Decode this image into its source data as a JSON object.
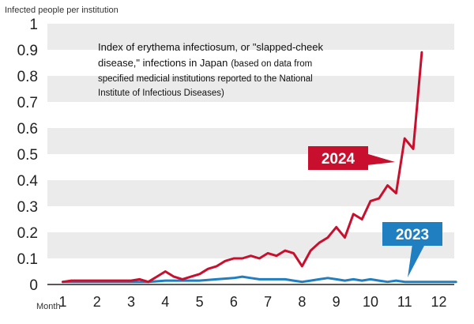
{
  "chart_data": {
    "type": "line",
    "ylabel": "Infected people per institution",
    "xlabel": "Month",
    "ylim": [
      0,
      1
    ],
    "yticks": [
      "0",
      "0.1",
      "0.2",
      "0.3",
      "0.4",
      "0.5",
      "0.6",
      "0.7",
      "0.8",
      "0.9",
      "1"
    ],
    "xticks": [
      "1",
      "2",
      "3",
      "4",
      "5",
      "6",
      "7",
      "8",
      "9",
      "10",
      "11",
      "12"
    ],
    "grid": "horizontal alternating bands",
    "note": {
      "title_1": "Index of erythema infectiosum, or \"slapped-cheek",
      "title_2": "disease,\" infections in Japan",
      "source_1": "(based on data from",
      "source_2": "specified medicial institutions reported to the National",
      "source_3": "Institute of Infectious Diseases)"
    },
    "series": [
      {
        "name": "2024",
        "color": "#c8102e",
        "x": [
          1,
          1.25,
          1.5,
          1.75,
          2,
          2.25,
          2.5,
          2.75,
          3,
          3.25,
          3.5,
          3.75,
          4,
          4.25,
          4.5,
          4.75,
          5,
          5.25,
          5.5,
          5.75,
          6,
          6.25,
          6.5,
          6.75,
          7,
          7.25,
          7.5,
          7.75,
          8,
          8.25,
          8.5,
          8.75,
          9,
          9.25,
          9.5,
          9.75,
          10,
          10.25,
          10.5,
          10.75,
          11,
          11.25,
          11.5
        ],
        "values": [
          0.01,
          0.015,
          0.015,
          0.015,
          0.015,
          0.015,
          0.015,
          0.015,
          0.015,
          0.02,
          0.01,
          0.03,
          0.05,
          0.03,
          0.02,
          0.03,
          0.04,
          0.06,
          0.07,
          0.09,
          0.1,
          0.1,
          0.11,
          0.1,
          0.12,
          0.11,
          0.13,
          0.12,
          0.07,
          0.13,
          0.16,
          0.18,
          0.22,
          0.18,
          0.27,
          0.25,
          0.32,
          0.33,
          0.38,
          0.35,
          0.56,
          0.52,
          0.89
        ]
      },
      {
        "name": "2023",
        "color": "#1f7fc1",
        "x": [
          1,
          1.5,
          2,
          2.5,
          3,
          3.5,
          4,
          4.5,
          5,
          5.5,
          6,
          6.25,
          6.5,
          6.75,
          7,
          7.25,
          7.5,
          7.75,
          8,
          8.25,
          8.5,
          8.75,
          9,
          9.25,
          9.5,
          9.75,
          10,
          10.25,
          10.5,
          10.75,
          11,
          11.25,
          11.5,
          12,
          12.5
        ],
        "values": [
          0.01,
          0.01,
          0.01,
          0.01,
          0.01,
          0.01,
          0.015,
          0.015,
          0.015,
          0.02,
          0.025,
          0.03,
          0.025,
          0.02,
          0.02,
          0.02,
          0.02,
          0.015,
          0.01,
          0.015,
          0.02,
          0.025,
          0.02,
          0.015,
          0.02,
          0.015,
          0.02,
          0.015,
          0.01,
          0.015,
          0.01,
          0.01,
          0.01,
          0.01,
          0.01
        ]
      }
    ]
  }
}
